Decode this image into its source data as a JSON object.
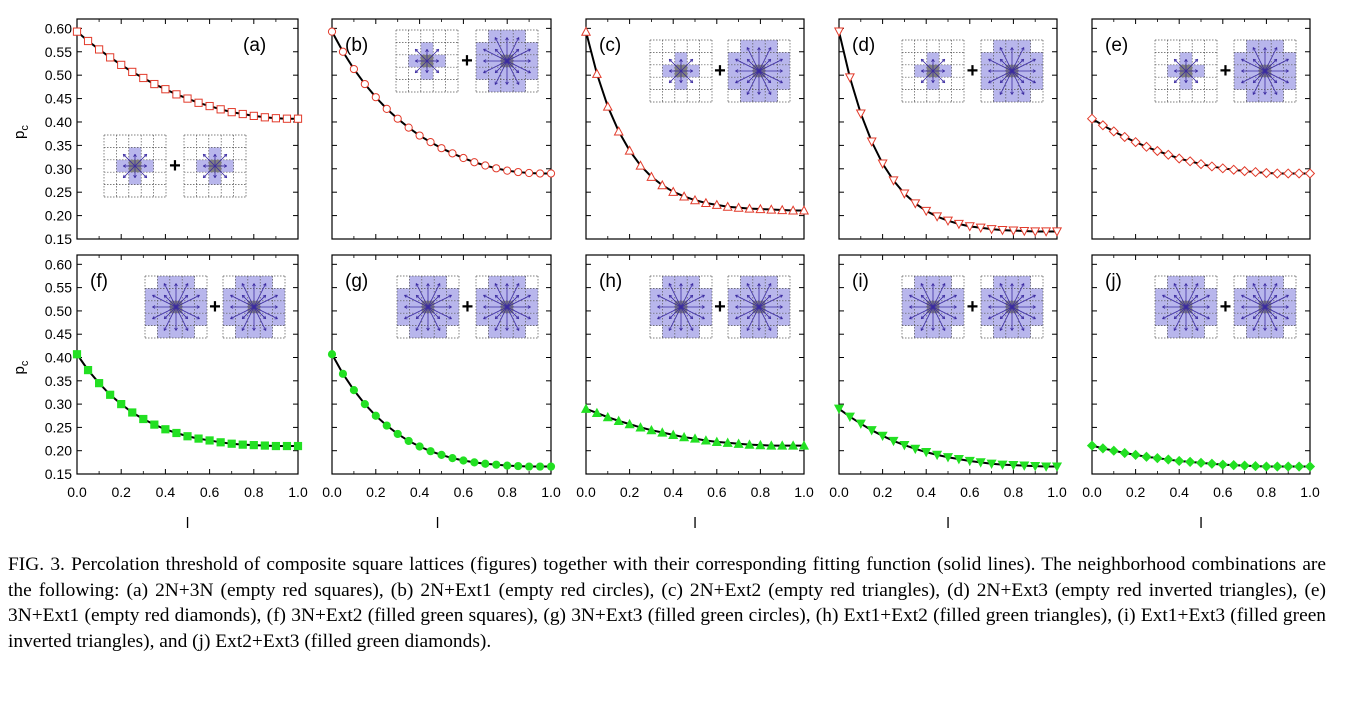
{
  "figure": {
    "ylabel": "p",
    "ylabel_sub": "c",
    "xlabel": "l",
    "plus": "+",
    "x_ticks": [
      "0.0",
      "0.2",
      "0.4",
      "0.6",
      "0.8",
      "1.0"
    ],
    "y_ticks": [
      "0.60",
      "0.55",
      "0.50",
      "0.45",
      "0.40",
      "0.35",
      "0.30",
      "0.25",
      "0.20",
      "0.15"
    ]
  },
  "colors": {
    "red_marker": "#e23a2a",
    "green_marker": "#22e022",
    "fit_line": "#000000",
    "lattice_fill": "#b8b6ec",
    "lattice_center": "#808080",
    "lattice_arrow": "#3a2aa0"
  },
  "chart_data": [
    {
      "type": "scatter",
      "panel": "(a)",
      "title": "(a)",
      "xlabel": "",
      "ylabel": "pc",
      "xlim": [
        0,
        1
      ],
      "ylim": [
        0.15,
        0.62
      ],
      "marker": "empty red squares",
      "fit": "solid line",
      "x": [
        0.0,
        0.05,
        0.1,
        0.15,
        0.2,
        0.25,
        0.3,
        0.35,
        0.4,
        0.45,
        0.5,
        0.55,
        0.6,
        0.65,
        0.7,
        0.75,
        0.8,
        0.85,
        0.9,
        0.95,
        1.0
      ],
      "y": [
        0.593,
        0.573,
        0.555,
        0.538,
        0.522,
        0.507,
        0.494,
        0.481,
        0.47,
        0.459,
        0.45,
        0.441,
        0.434,
        0.427,
        0.421,
        0.417,
        0.413,
        0.41,
        0.408,
        0.407,
        0.407
      ]
    },
    {
      "type": "scatter",
      "panel": "(b)",
      "title": "(b)",
      "xlabel": "",
      "ylabel": "",
      "xlim": [
        0,
        1
      ],
      "ylim": [
        0.15,
        0.62
      ],
      "marker": "empty red circles",
      "fit": "solid line",
      "x": [
        0.0,
        0.05,
        0.1,
        0.15,
        0.2,
        0.25,
        0.3,
        0.35,
        0.4,
        0.45,
        0.5,
        0.55,
        0.6,
        0.65,
        0.7,
        0.75,
        0.8,
        0.85,
        0.9,
        0.95,
        1.0
      ],
      "y": [
        0.593,
        0.55,
        0.513,
        0.481,
        0.453,
        0.428,
        0.407,
        0.388,
        0.371,
        0.357,
        0.344,
        0.333,
        0.323,
        0.314,
        0.307,
        0.301,
        0.296,
        0.293,
        0.291,
        0.29,
        0.29
      ]
    },
    {
      "type": "scatter",
      "panel": "(c)",
      "title": "(c)",
      "xlabel": "",
      "ylabel": "",
      "xlim": [
        0,
        1
      ],
      "ylim": [
        0.15,
        0.62
      ],
      "marker": "empty red triangles",
      "fit": "solid line",
      "x": [
        0.0,
        0.05,
        0.1,
        0.15,
        0.2,
        0.25,
        0.3,
        0.35,
        0.4,
        0.45,
        0.5,
        0.55,
        0.6,
        0.65,
        0.7,
        0.75,
        0.8,
        0.85,
        0.9,
        0.95,
        1.0
      ],
      "y": [
        0.593,
        0.503,
        0.433,
        0.38,
        0.339,
        0.307,
        0.283,
        0.265,
        0.251,
        0.241,
        0.233,
        0.227,
        0.223,
        0.219,
        0.217,
        0.215,
        0.214,
        0.213,
        0.212,
        0.211,
        0.211
      ]
    },
    {
      "type": "scatter",
      "panel": "(d)",
      "title": "(d)",
      "xlabel": "",
      "ylabel": "",
      "xlim": [
        0,
        1
      ],
      "ylim": [
        0.15,
        0.62
      ],
      "marker": "empty red inverted triangles",
      "fit": "solid line",
      "x": [
        0.0,
        0.05,
        0.1,
        0.15,
        0.2,
        0.25,
        0.3,
        0.35,
        0.4,
        0.45,
        0.5,
        0.55,
        0.6,
        0.65,
        0.7,
        0.75,
        0.8,
        0.85,
        0.9,
        0.95,
        1.0
      ],
      "y": [
        0.593,
        0.495,
        0.418,
        0.358,
        0.311,
        0.275,
        0.247,
        0.226,
        0.21,
        0.198,
        0.189,
        0.182,
        0.177,
        0.174,
        0.171,
        0.169,
        0.168,
        0.167,
        0.166,
        0.166,
        0.166
      ]
    },
    {
      "type": "scatter",
      "panel": "(e)",
      "title": "(e)",
      "xlabel": "",
      "ylabel": "",
      "xlim": [
        0,
        1
      ],
      "ylim": [
        0.15,
        0.62
      ],
      "marker": "empty red diamonds",
      "fit": "solid line",
      "x": [
        0.0,
        0.05,
        0.1,
        0.15,
        0.2,
        0.25,
        0.3,
        0.35,
        0.4,
        0.45,
        0.5,
        0.55,
        0.6,
        0.65,
        0.7,
        0.75,
        0.8,
        0.85,
        0.9,
        0.95,
        1.0
      ],
      "y": [
        0.407,
        0.393,
        0.38,
        0.368,
        0.357,
        0.347,
        0.338,
        0.33,
        0.322,
        0.316,
        0.31,
        0.305,
        0.301,
        0.298,
        0.295,
        0.293,
        0.291,
        0.29,
        0.29,
        0.29,
        0.29
      ]
    },
    {
      "type": "scatter",
      "panel": "(f)",
      "title": "(f)",
      "xlabel": "l",
      "ylabel": "pc",
      "xlim": [
        0,
        1
      ],
      "ylim": [
        0.15,
        0.62
      ],
      "marker": "filled green squares",
      "fit": "solid line",
      "x": [
        0.0,
        0.05,
        0.1,
        0.15,
        0.2,
        0.25,
        0.3,
        0.35,
        0.4,
        0.45,
        0.5,
        0.55,
        0.6,
        0.65,
        0.7,
        0.75,
        0.8,
        0.85,
        0.9,
        0.95,
        1.0
      ],
      "y": [
        0.407,
        0.373,
        0.345,
        0.32,
        0.3,
        0.282,
        0.268,
        0.256,
        0.246,
        0.238,
        0.231,
        0.226,
        0.222,
        0.218,
        0.215,
        0.213,
        0.212,
        0.211,
        0.21,
        0.21,
        0.21
      ]
    },
    {
      "type": "scatter",
      "panel": "(g)",
      "title": "(g)",
      "xlabel": "l",
      "ylabel": "",
      "xlim": [
        0,
        1
      ],
      "ylim": [
        0.15,
        0.62
      ],
      "marker": "filled green circles",
      "fit": "solid line",
      "x": [
        0.0,
        0.05,
        0.1,
        0.15,
        0.2,
        0.25,
        0.3,
        0.35,
        0.4,
        0.45,
        0.5,
        0.55,
        0.6,
        0.65,
        0.7,
        0.75,
        0.8,
        0.85,
        0.9,
        0.95,
        1.0
      ],
      "y": [
        0.407,
        0.365,
        0.33,
        0.3,
        0.275,
        0.254,
        0.236,
        0.221,
        0.209,
        0.199,
        0.191,
        0.184,
        0.179,
        0.175,
        0.172,
        0.17,
        0.168,
        0.167,
        0.166,
        0.166,
        0.166
      ]
    },
    {
      "type": "scatter",
      "panel": "(h)",
      "title": "(h)",
      "xlabel": "l",
      "ylabel": "",
      "xlim": [
        0,
        1
      ],
      "ylim": [
        0.15,
        0.62
      ],
      "marker": "filled green triangles",
      "fit": "solid line",
      "x": [
        0.0,
        0.05,
        0.1,
        0.15,
        0.2,
        0.25,
        0.3,
        0.35,
        0.4,
        0.45,
        0.5,
        0.55,
        0.6,
        0.65,
        0.7,
        0.75,
        0.8,
        0.85,
        0.9,
        0.95,
        1.0
      ],
      "y": [
        0.29,
        0.281,
        0.272,
        0.264,
        0.257,
        0.25,
        0.244,
        0.239,
        0.234,
        0.229,
        0.226,
        0.222,
        0.219,
        0.217,
        0.215,
        0.213,
        0.212,
        0.211,
        0.211,
        0.211,
        0.211
      ]
    },
    {
      "type": "scatter",
      "panel": "(i)",
      "title": "(i)",
      "xlabel": "l",
      "ylabel": "",
      "xlim": [
        0,
        1
      ],
      "ylim": [
        0.15,
        0.62
      ],
      "marker": "filled green inverted triangles",
      "fit": "solid line",
      "x": [
        0.0,
        0.05,
        0.1,
        0.15,
        0.2,
        0.25,
        0.3,
        0.35,
        0.4,
        0.45,
        0.5,
        0.55,
        0.6,
        0.65,
        0.7,
        0.75,
        0.8,
        0.85,
        0.9,
        0.95,
        1.0
      ],
      "y": [
        0.29,
        0.273,
        0.258,
        0.244,
        0.232,
        0.221,
        0.212,
        0.204,
        0.197,
        0.191,
        0.186,
        0.182,
        0.178,
        0.175,
        0.172,
        0.17,
        0.169,
        0.168,
        0.167,
        0.166,
        0.166
      ]
    },
    {
      "type": "scatter",
      "panel": "(j)",
      "title": "(j)",
      "xlabel": "l",
      "ylabel": "",
      "xlim": [
        0,
        1
      ],
      "ylim": [
        0.15,
        0.62
      ],
      "marker": "filled green diamonds",
      "fit": "solid line",
      "x": [
        0.0,
        0.05,
        0.1,
        0.15,
        0.2,
        0.25,
        0.3,
        0.35,
        0.4,
        0.45,
        0.5,
        0.55,
        0.6,
        0.65,
        0.7,
        0.75,
        0.8,
        0.85,
        0.9,
        0.95,
        1.0
      ],
      "y": [
        0.211,
        0.205,
        0.2,
        0.195,
        0.191,
        0.187,
        0.184,
        0.181,
        0.178,
        0.176,
        0.174,
        0.172,
        0.17,
        0.169,
        0.168,
        0.167,
        0.166,
        0.166,
        0.166,
        0.166,
        0.166
      ]
    }
  ],
  "caption": "FIG. 3. Percolation threshold of composite square lattices (figures) together with their corresponding fitting function (solid lines). The neighborhood combinations are the following: (a) 2N+3N (empty red squares), (b) 2N+Ext1 (empty red circles), (c) 2N+Ext2 (empty red triangles), (d) 2N+Ext3 (empty red inverted triangles), (e) 3N+Ext1 (empty red diamonds), (f) 3N+Ext2 (filled green squares), (g) 3N+Ext3 (filled green circles), (h) Ext1+Ext2 (filled green triangles), (i) Ext1+Ext3 (filled green inverted triangles), and (j) Ext2+Ext3 (filled green diamonds)."
}
